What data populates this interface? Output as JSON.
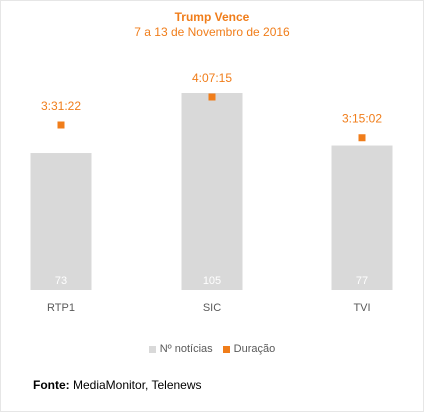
{
  "chart_data": {
    "type": "bar",
    "title": "Trump Vence",
    "subtitle": "7 a 13 de Novembro de 2016",
    "categories": [
      "RTP1",
      "SIC",
      "TVI"
    ],
    "series": [
      {
        "name": "Nº notícias",
        "type": "bar",
        "color": "#d9d9d9",
        "values": [
          73,
          105,
          77
        ],
        "labels": [
          "73",
          "105",
          "77"
        ]
      },
      {
        "name": "Duração",
        "type": "marker",
        "color": "#f07d1a",
        "values": [
          "3:31:22",
          "4:07:15",
          "3:15:02"
        ],
        "values_seconds": [
          12682,
          14835,
          11702
        ]
      }
    ],
    "legend_position": "bottom",
    "grid": false
  },
  "source": {
    "label": "Fonte:",
    "text": " MediaMonitor, Telenews"
  }
}
